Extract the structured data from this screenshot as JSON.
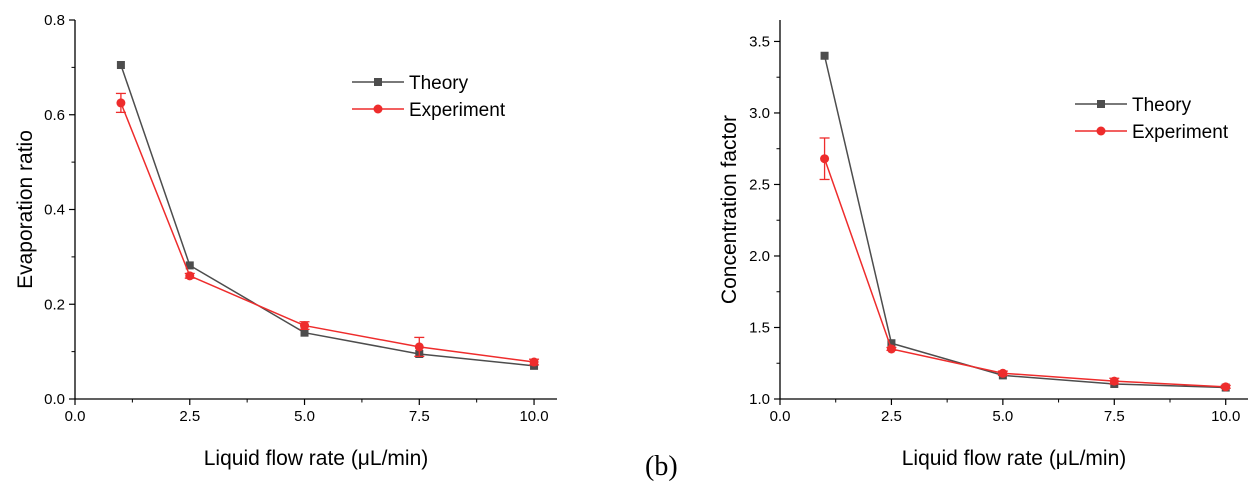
{
  "panel_label": "(b)",
  "colors": {
    "theory": "#4d4d4d",
    "experiment": "#ee2c2c",
    "axis": "#000000"
  },
  "chart_data": [
    {
      "type": "line",
      "xlabel": "Liquid flow rate (μL/min)",
      "ylabel": "Evaporation ratio",
      "xlim": [
        0,
        10.5
      ],
      "ylim": [
        0,
        0.8
      ],
      "xticks": [
        "0.0",
        "2.5",
        "5.0",
        "7.5",
        "10.0"
      ],
      "xtick_values": [
        0,
        2.5,
        5,
        7.5,
        10
      ],
      "yticks": [
        "0.0",
        "0.2",
        "0.4",
        "0.6",
        "0.8"
      ],
      "ytick_values": [
        0,
        0.2,
        0.4,
        0.6,
        0.8
      ],
      "grid": false,
      "legend_position": "top-right",
      "series": [
        {
          "name": "Theory",
          "marker": "square",
          "x": [
            1,
            2.5,
            5,
            7.5,
            10
          ],
          "y": [
            0.705,
            0.282,
            0.14,
            0.095,
            0.07
          ]
        },
        {
          "name": "Experiment",
          "marker": "circle",
          "x": [
            1,
            2.5,
            5,
            7.5,
            10
          ],
          "y": [
            0.625,
            0.26,
            0.155,
            0.11,
            0.078
          ],
          "error": [
            0.02,
            0.005,
            0.008,
            0.02,
            0.006
          ]
        }
      ]
    },
    {
      "type": "line",
      "xlabel": "Liquid flow rate (μL/min)",
      "ylabel": "Concentration factor",
      "xlim": [
        0,
        10.5
      ],
      "ylim": [
        1.0,
        3.65
      ],
      "xticks": [
        "0.0",
        "2.5",
        "5.0",
        "7.5",
        "10.0"
      ],
      "xtick_values": [
        0,
        2.5,
        5,
        7.5,
        10
      ],
      "yticks": [
        "1.0",
        "1.5",
        "2.0",
        "2.5",
        "3.0",
        "3.5"
      ],
      "ytick_values": [
        1.0,
        1.5,
        2.0,
        2.5,
        3.0,
        3.5
      ],
      "grid": false,
      "legend_position": "top-right",
      "series": [
        {
          "name": "Theory",
          "marker": "square",
          "x": [
            1,
            2.5,
            5,
            7.5,
            10
          ],
          "y": [
            3.4,
            1.39,
            1.165,
            1.105,
            1.08
          ]
        },
        {
          "name": "Experiment",
          "marker": "circle",
          "x": [
            1,
            2.5,
            5,
            7.5,
            10
          ],
          "y": [
            2.68,
            1.35,
            1.18,
            1.125,
            1.085
          ],
          "error": [
            0.145,
            0.01,
            0.015,
            0.02,
            0.01
          ]
        }
      ]
    }
  ]
}
